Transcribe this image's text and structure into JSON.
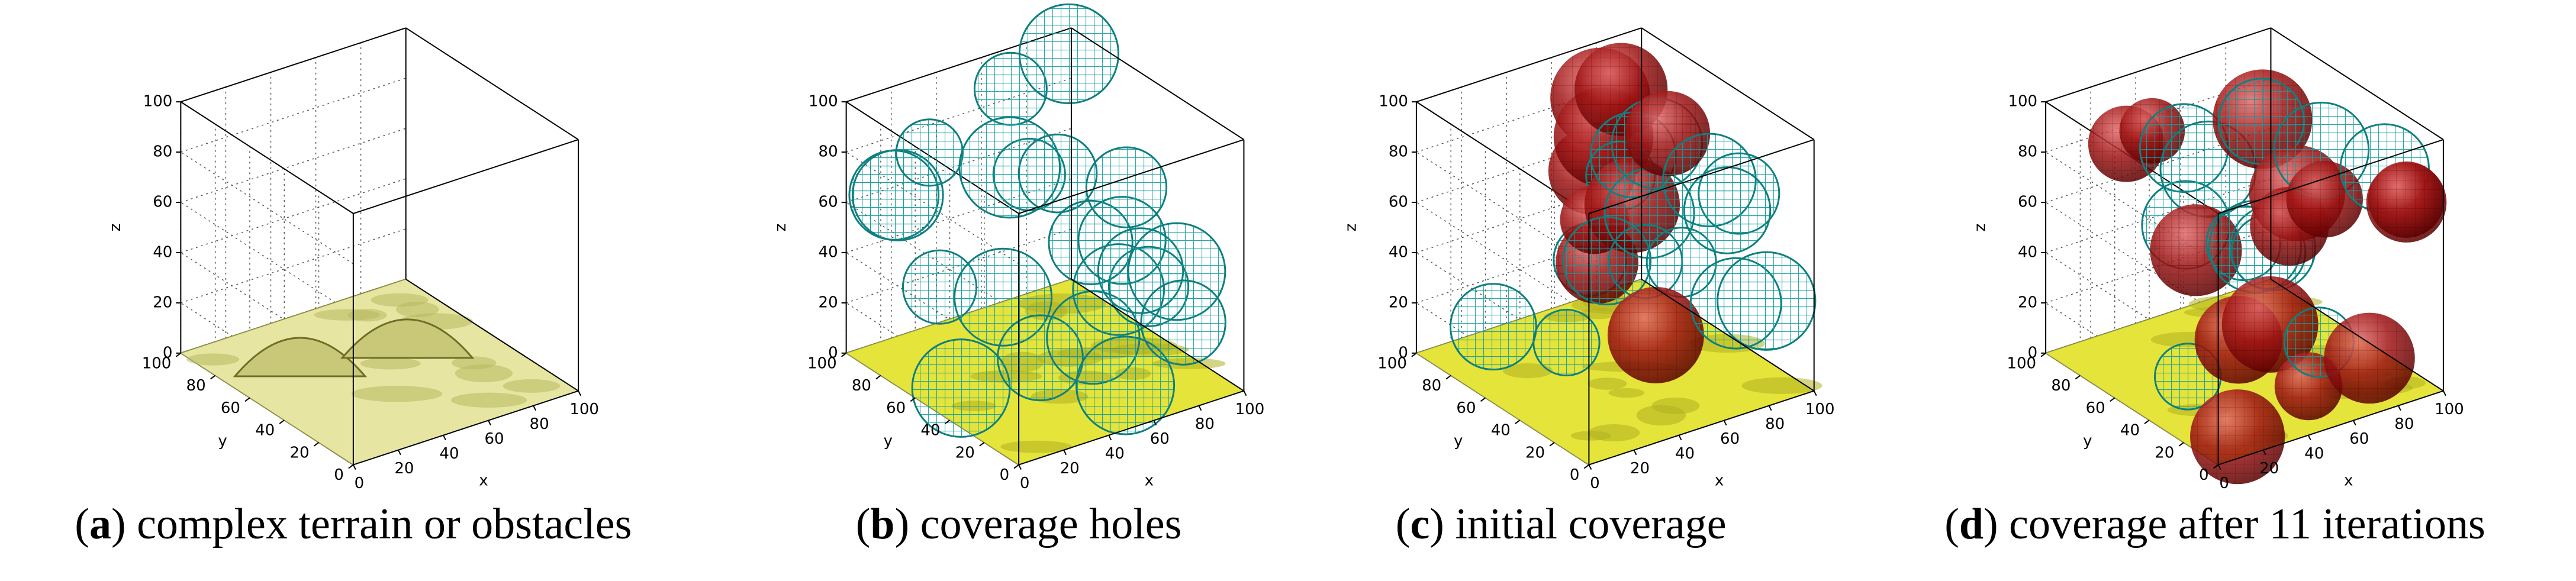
{
  "panels": [
    {
      "caption": {
        "open": "(",
        "label": "a",
        "text": ") complex terrain or obstacles"
      },
      "axes": {
        "x_label": "x",
        "y_label": "y",
        "z_label": "z",
        "xticks": [
          0,
          20,
          40,
          60,
          80,
          100
        ],
        "yticks": [
          0,
          20,
          40,
          60,
          80,
          100
        ],
        "zticks": [
          0,
          20,
          40,
          60,
          80,
          100
        ]
      }
    },
    {
      "caption": {
        "open": "(",
        "label": "b",
        "text": ") coverage holes"
      },
      "axes": {
        "x_label": "x",
        "y_label": "y",
        "z_label": "z",
        "xticks": [
          0,
          20,
          40,
          60,
          80,
          100
        ],
        "yticks": [
          0,
          20,
          40,
          60,
          80,
          100
        ],
        "zticks": [
          0,
          20,
          40,
          60,
          80,
          100
        ]
      }
    },
    {
      "caption": {
        "open": "(",
        "label": "c",
        "text": ") initial coverage"
      },
      "axes": {
        "x_label": "x",
        "y_label": "y",
        "z_label": "z",
        "xticks": [
          0,
          20,
          40,
          60,
          80,
          100
        ],
        "yticks": [
          0,
          20,
          40,
          60,
          80,
          100
        ],
        "zticks": [
          0,
          20,
          40,
          60,
          80,
          100
        ]
      }
    },
    {
      "caption": {
        "open": "(",
        "label": "d",
        "text": ") coverage after 11 iterations"
      },
      "axes": {
        "x_label": "x",
        "y_label": "y",
        "z_label": "z",
        "xticks": [
          0,
          20,
          40,
          60,
          80,
          100
        ],
        "yticks": [
          0,
          20,
          40,
          60,
          80,
          100
        ],
        "zticks": [
          0,
          20,
          40,
          60,
          80,
          100
        ]
      }
    }
  ]
}
